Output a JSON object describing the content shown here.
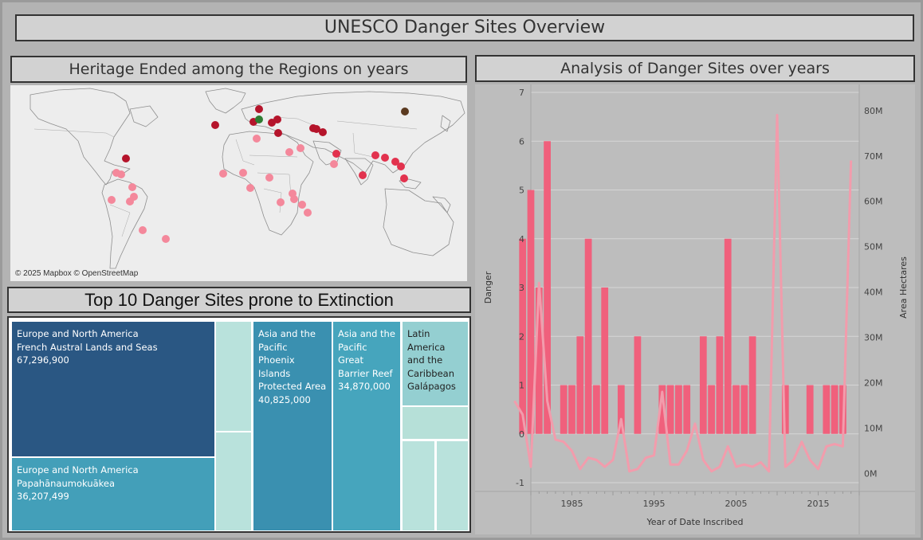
{
  "dashboard": {
    "title": "UNESCO Danger Sites Overview"
  },
  "map": {
    "title": "Heritage Ended among the Regions on years",
    "credit": "© 2025 Mapbox © OpenStreetMap",
    "colors": {
      "land": "#ededed",
      "border": "#8e8e8e",
      "light_point": "#f4889b",
      "mid_point": "#e2324e",
      "dark_point": "#b5142b",
      "green_point": "#2e7d32",
      "brown_point": "#5b3a20"
    }
  },
  "treemap": {
    "title": "Top 10 Danger Sites prone to Extinction",
    "tiles": [
      {
        "region": "Europe and North America",
        "site": "French Austral Lands and Seas",
        "value": "67,296,900",
        "color": "#2a5783"
      },
      {
        "region": "Europe and North America",
        "site": "Papahānaumokuākea",
        "value": "36,207,499",
        "color": "#439fb9"
      },
      {
        "region": "Asia and the Pacific",
        "site": "Phoenix Islands Protected Area",
        "value": "40,825,000",
        "color": "#3a90b0"
      },
      {
        "region": "Asia and the Pacific",
        "site": "Great Barrier Reef",
        "value": "34,870,000",
        "color": "#46a5bd"
      },
      {
        "region": "Latin America and the Caribbean",
        "site": "Galápagos",
        "value": "",
        "color": "#94cfd1"
      }
    ]
  },
  "chart": {
    "title": "Analysis of Danger Sites over years"
  },
  "chart_data": {
    "type": "bar",
    "title": "Analysis of Danger Sites over years",
    "xlabel": "Year of Date Inscribed",
    "ylabel": "Danger",
    "y2label": "Area Hectares",
    "xlim": [
      1980,
      2020
    ],
    "ylim": [
      -1,
      7
    ],
    "y2lim": [
      -2000000,
      84000000
    ],
    "x_ticks": [
      1985,
      1995,
      2005,
      2015
    ],
    "y_ticks": [
      -1,
      0,
      1,
      2,
      3,
      4,
      5,
      6,
      7
    ],
    "y2_ticks": [
      "0M",
      "10M",
      "20M",
      "30M",
      "40M",
      "50M",
      "60M",
      "70M",
      "80M"
    ],
    "bar_color": "#f0607c",
    "line_color": "#f29cac",
    "series": [
      {
        "name": "Danger",
        "type": "bar",
        "x": [
          1979,
          1980,
          1981,
          1982,
          1983,
          1984,
          1985,
          1986,
          1987,
          1988,
          1989,
          1991,
          1993,
          1996,
          1997,
          1998,
          1999,
          2001,
          2002,
          2003,
          2004,
          2005,
          2006,
          2007,
          2011,
          2014,
          2016,
          2017,
          2018
        ],
        "values": [
          4,
          5,
          3,
          6,
          0,
          1,
          1,
          2,
          4,
          1,
          3,
          1,
          2,
          1,
          1,
          1,
          1,
          2,
          1,
          2,
          4,
          1,
          1,
          2,
          1,
          1,
          1,
          1,
          1
        ]
      },
      {
        "name": "Area Hectares",
        "type": "line",
        "x": [
          1978,
          1979,
          1980,
          1981,
          1982,
          1983,
          1984,
          1985,
          1986,
          1987,
          1988,
          1989,
          1990,
          1991,
          1992,
          1993,
          1994,
          1995,
          1996,
          1997,
          1998,
          1999,
          2000,
          2001,
          2002,
          2003,
          2004,
          2005,
          2006,
          2007,
          2008,
          2009,
          2010,
          2011,
          2012,
          2013,
          2014,
          2015,
          2016,
          2017,
          2018,
          2019
        ],
        "values": [
          16000000,
          13000000,
          1500000,
          42000000,
          16000000,
          7500000,
          7000000,
          5000000,
          1000000,
          3500000,
          3000000,
          1500000,
          3000000,
          12000000,
          500000,
          1000000,
          3500000,
          4000000,
          18000000,
          2000000,
          2000000,
          5000000,
          11000000,
          3000000,
          500000,
          1500000,
          6000000,
          1500000,
          2000000,
          1500000,
          2500000,
          500000,
          79000000,
          1500000,
          3000000,
          7000000,
          3000000,
          1000000,
          6000000,
          6500000,
          6000000,
          69000000
        ]
      }
    ]
  }
}
